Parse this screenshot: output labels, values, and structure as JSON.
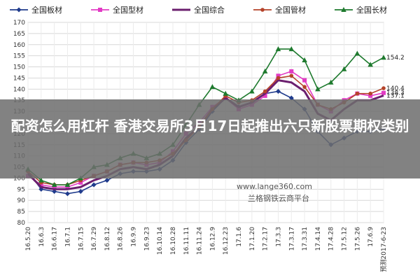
{
  "banner": {
    "text": "配资怎么用杠杆 香港交易所3月17日起推出六只新股票期权类别"
  },
  "watermark": {
    "url": "www.lange360.com",
    "name": "兰格钢铁云商平台"
  },
  "colors": {
    "national_plate": "#1f3b8c",
    "national_section": "#e23bc4",
    "national_composite": "#6b1f6e",
    "national_pipe": "#b5432a",
    "national_long": "#1e7a2e",
    "grid": "#d8d8d8",
    "banner_bg": "#6e6e6e"
  },
  "chart_data": {
    "type": "line",
    "xlabel": "",
    "ylabel": "",
    "ylim": [
      80,
      170
    ],
    "yticks": [
      80,
      85,
      90,
      95,
      100,
      105,
      110,
      115,
      120,
      125,
      130,
      135,
      140,
      145,
      150,
      155,
      160,
      165,
      170
    ],
    "grid": true,
    "legend_position": "top",
    "categories": [
      "16.5.20",
      "16.6.3",
      "16.6.17",
      "16.7.1",
      "16.7.15",
      "16.7.29",
      "16.8.12",
      "16.8.26",
      "16.9.9",
      "16.9.23",
      "16.10.14",
      "16.10.28",
      "16.11.11",
      "16.11.24",
      "16.12.9",
      "16.12.23",
      "17.1.6",
      "17.1.20",
      "17.2.17",
      "17.3.3",
      "17.3.17",
      "17.3.31",
      "17.4.14",
      "17.4.28",
      "17.5.12",
      "17.5.26",
      "17.6.9",
      "预测2017-6-23"
    ],
    "series": [
      {
        "name": "全国板材",
        "color": "#1f3b8c",
        "marker": "diamond",
        "values": [
          103,
          95,
          94,
          93,
          94,
          97,
          99,
          102,
          103,
          103,
          104,
          108,
          116,
          122,
          130,
          136,
          132,
          134,
          138,
          139,
          136,
          131,
          121,
          115,
          118,
          121,
          121,
          122.1
        ],
        "end_label": ""
      },
      {
        "name": "全国型材",
        "color": "#e23bc4",
        "marker": "square",
        "values": [
          101,
          97,
          96,
          96,
          98,
          101,
          103,
          106,
          107,
          106,
          107,
          112,
          120,
          125,
          132,
          136,
          131,
          133,
          137,
          146,
          148,
          144,
          133,
          130,
          135,
          138,
          137,
          138.3
        ],
        "end_label": "138.3"
      },
      {
        "name": "全国综合",
        "color": "#6b1f6e",
        "marker": "none",
        "values": [
          102,
          96,
          95,
          95,
          96,
          99,
          101,
          104,
          105,
          104,
          106,
          110,
          118,
          123,
          131,
          136,
          132,
          134,
          138,
          144,
          143,
          139,
          129,
          126,
          131,
          135,
          135,
          137.1
        ],
        "end_label": "137.1"
      },
      {
        "name": "全国管材",
        "color": "#b5432a",
        "marker": "circle",
        "values": [
          103,
          98,
          97,
          97,
          99,
          101,
          103,
          106,
          107,
          107,
          108,
          111,
          117,
          123,
          131,
          137,
          134,
          135,
          139,
          145,
          146,
          141,
          133,
          131,
          134,
          138,
          138,
          140.4
        ],
        "end_label": "140.4"
      },
      {
        "name": "全国长材",
        "color": "#1e7a2e",
        "marker": "triangle",
        "values": [
          104,
          99,
          97,
          97,
          100,
          105,
          106,
          109,
          111,
          109,
          111,
          115,
          124,
          133,
          141,
          138,
          135,
          139,
          148,
          158,
          158,
          153,
          140,
          143,
          149,
          156,
          151,
          154.2
        ],
        "end_label": "154.2"
      }
    ]
  }
}
